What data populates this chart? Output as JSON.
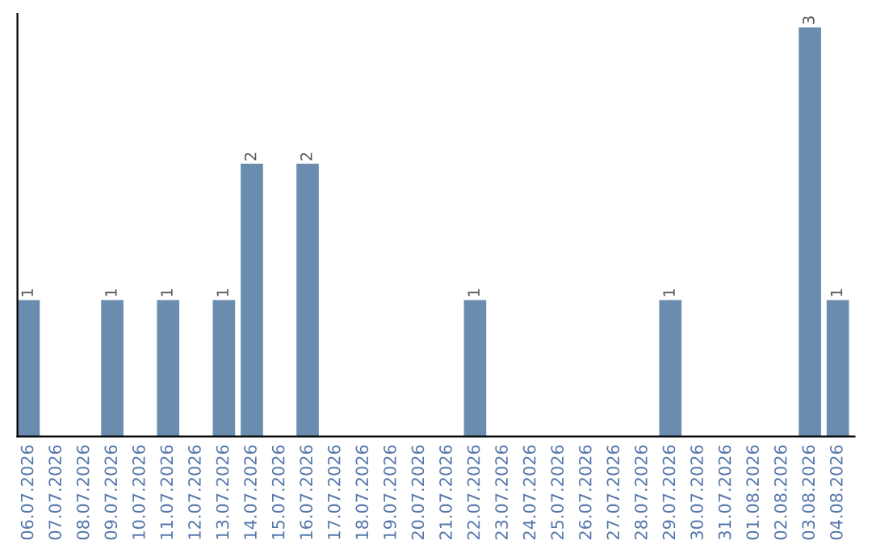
{
  "chart_data": {
    "type": "bar",
    "categories": [
      "06.07.2026",
      "07.07.2026",
      "08.07.2026",
      "09.07.2026",
      "10.07.2026",
      "11.07.2026",
      "12.07.2026",
      "13.07.2026",
      "14.07.2026",
      "15.07.2026",
      "16.07.2026",
      "17.07.2026",
      "18.07.2026",
      "19.07.2026",
      "20.07.2026",
      "21.07.2026",
      "22.07.2026",
      "23.07.2026",
      "24.07.2026",
      "25.07.2026",
      "26.07.2026",
      "27.07.2026",
      "28.07.2026",
      "29.07.2026",
      "30.07.2026",
      "31.07.2026",
      "01.08.2026",
      "02.08.2026",
      "03.08.2026",
      "04.08.2026"
    ],
    "values": [
      1,
      0,
      0,
      1,
      0,
      1,
      0,
      1,
      2,
      0,
      2,
      0,
      0,
      0,
      0,
      0,
      1,
      0,
      0,
      0,
      0,
      0,
      0,
      1,
      0,
      0,
      0,
      0,
      3,
      1
    ],
    "value_labels": [
      "1",
      null,
      null,
      "1",
      null,
      "1",
      null,
      "1",
      "2",
      null,
      "2",
      null,
      null,
      null,
      null,
      null,
      "1",
      null,
      null,
      null,
      null,
      null,
      null,
      "1",
      null,
      null,
      null,
      null,
      "3",
      "1"
    ],
    "color": "#6a8caf",
    "ylim": [
      0,
      3.1
    ],
    "tick_labels": "x",
    "grid": false,
    "legend": false
  }
}
